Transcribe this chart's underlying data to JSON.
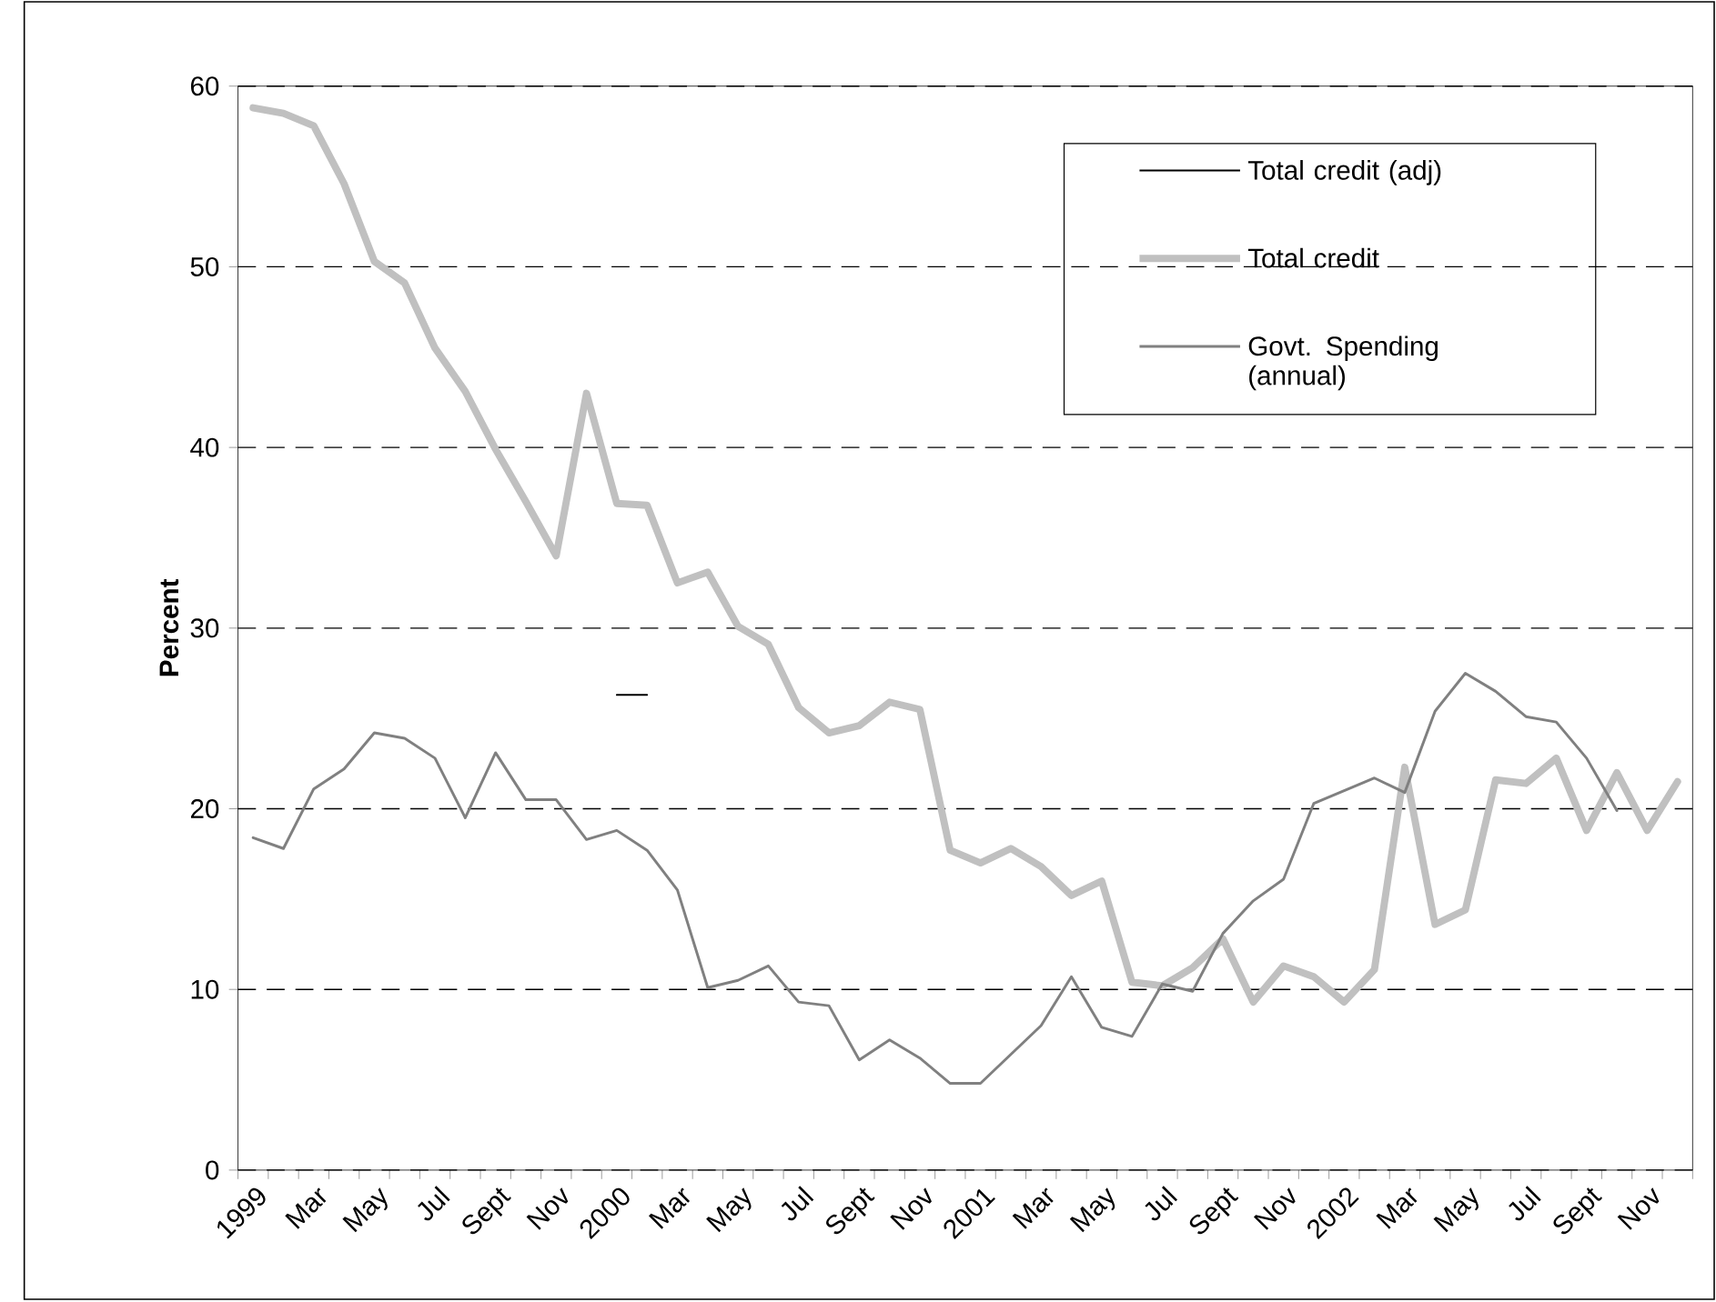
{
  "chart_data": {
    "type": "line",
    "ylabel": "Percent",
    "categories": [
      "1999",
      null,
      "Mar",
      null,
      "May",
      null,
      "Jul",
      null,
      "Sept",
      null,
      "Nov",
      null,
      "2000",
      null,
      "Mar",
      null,
      "May",
      null,
      "Jul",
      null,
      "Sept",
      null,
      "Nov",
      null,
      "2001",
      null,
      "Mar",
      null,
      "May",
      null,
      "Jul",
      null,
      "Sept",
      null,
      "Nov",
      null,
      "2002",
      null,
      "Mar",
      null,
      "May",
      null,
      "Jul",
      null,
      "Sept",
      null,
      "Nov",
      null
    ],
    "series": [
      {
        "name": "Total credit (adj)",
        "color": "#000000",
        "values": [
          null,
          null,
          null,
          null,
          null,
          null,
          null,
          null,
          null,
          null,
          null,
          null,
          26.3,
          26.3,
          null,
          null,
          null,
          null,
          null,
          null,
          null,
          null,
          null,
          null,
          null,
          null,
          null,
          null,
          null,
          null,
          null,
          null,
          null,
          null,
          null,
          null,
          null,
          null,
          null,
          null,
          null,
          null,
          null,
          null,
          null,
          null,
          null,
          null
        ]
      },
      {
        "name": "Total credit",
        "color": "#c0c0c0",
        "values": [
          58.8,
          58.5,
          57.8,
          54.6,
          50.3,
          49.1,
          45.5,
          43.1,
          39.9,
          37.0,
          34.0,
          43.0,
          36.9,
          36.8,
          32.5,
          33.1,
          30.1,
          29.1,
          25.6,
          24.2,
          24.6,
          25.9,
          25.5,
          17.7,
          17.0,
          17.8,
          16.8,
          15.2,
          16.0,
          10.4,
          10.2,
          11.2,
          12.8,
          9.3,
          11.3,
          10.7,
          9.3,
          11.1,
          22.3,
          13.6,
          14.4,
          21.6,
          21.4,
          22.8,
          18.8,
          22.0,
          18.8,
          21.5
        ]
      },
      {
        "name": "Govt. Spending (annual)",
        "color": "#808080",
        "values": [
          18.4,
          17.8,
          21.1,
          22.2,
          24.2,
          23.9,
          22.8,
          19.5,
          23.1,
          20.5,
          20.5,
          18.3,
          18.8,
          17.7,
          15.5,
          10.1,
          10.5,
          11.3,
          9.3,
          9.1,
          6.1,
          7.2,
          6.2,
          4.8,
          4.8,
          6.4,
          8.0,
          10.7,
          7.9,
          7.4,
          10.3,
          9.9,
          13.1,
          14.9,
          16.1,
          20.3,
          21.0,
          21.7,
          20.9,
          25.4,
          27.5,
          26.5,
          25.1,
          24.8,
          22.8,
          19.9,
          null,
          null
        ]
      }
    ],
    "ylim": [
      0,
      60
    ],
    "yticks": [
      0,
      10,
      20,
      30,
      40,
      50,
      60
    ],
    "grid": "y",
    "legend": "top right"
  }
}
